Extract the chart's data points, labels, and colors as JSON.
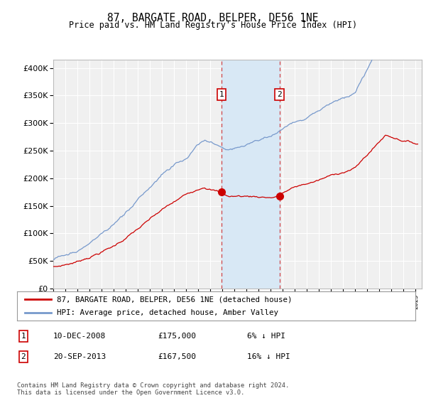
{
  "title": "87, BARGATE ROAD, BELPER, DE56 1NE",
  "subtitle": "Price paid vs. HM Land Registry's House Price Index (HPI)",
  "ytick_values": [
    0,
    50000,
    100000,
    150000,
    200000,
    250000,
    300000,
    350000,
    400000
  ],
  "ylim": [
    0,
    415000
  ],
  "sale1": {
    "date_num": 2008.94,
    "price": 175000,
    "label": "1",
    "date_str": "10-DEC-2008",
    "price_str": "£175,000",
    "pct_str": "6% ↓ HPI"
  },
  "sale2": {
    "date_num": 2013.72,
    "price": 167500,
    "label": "2",
    "date_str": "20-SEP-2013",
    "price_str": "£167,500",
    "pct_str": "16% ↓ HPI"
  },
  "background_color": "#ffffff",
  "plot_bg_color": "#f0f0f0",
  "grid_color": "#ffffff",
  "line_color_property": "#cc0000",
  "line_color_hpi": "#7799cc",
  "shade_color": "#d8e8f5",
  "vline_color": "#cc0000",
  "legend_label_property": "87, BARGATE ROAD, BELPER, DE56 1NE (detached house)",
  "legend_label_hpi": "HPI: Average price, detached house, Amber Valley",
  "footer": "Contains HM Land Registry data © Crown copyright and database right 2024.\nThis data is licensed under the Open Government Licence v3.0.",
  "xlim_start": 1995.0,
  "xlim_end": 2025.5
}
